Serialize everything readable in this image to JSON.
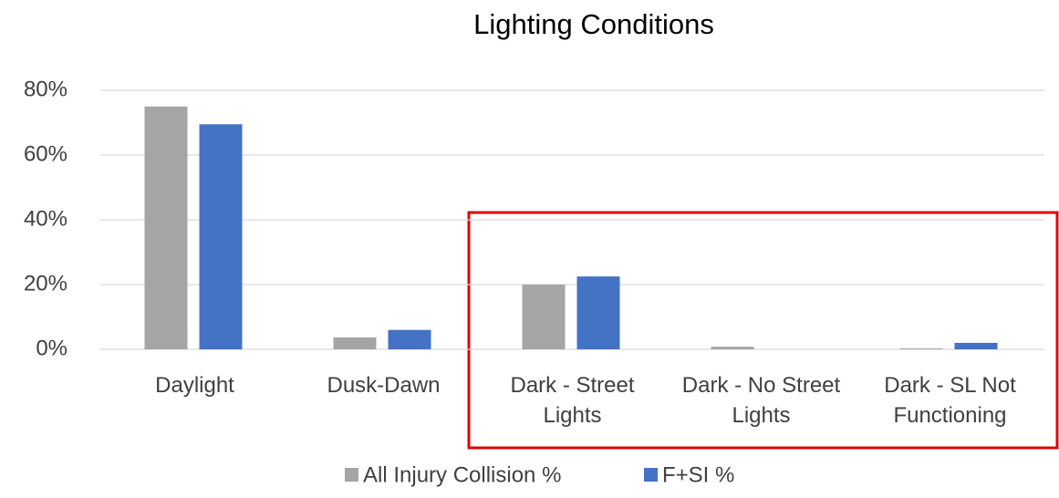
{
  "chart_data": {
    "type": "bar",
    "title": "Lighting Conditions",
    "categories": [
      "Daylight",
      "Dusk-Dawn",
      "Dark - Street Lights",
      "Dark - No Street Lights",
      "Dark - SL Not Functioning"
    ],
    "series": [
      {
        "name": "All Injury Collision %",
        "color": "#a5a5a5",
        "values": [
          75,
          3.7,
          20,
          0.8,
          0.3
        ]
      },
      {
        "name": "F+SI %",
        "color": "#4472c4",
        "values": [
          69.5,
          6,
          22.5,
          0,
          2
        ]
      }
    ],
    "ylim": [
      0,
      80
    ],
    "yticks": [
      {
        "value": 0,
        "label": "0%"
      },
      {
        "value": 20,
        "label": "20%"
      },
      {
        "value": 40,
        "label": "40%"
      },
      {
        "value": 60,
        "label": "60%"
      },
      {
        "value": 80,
        "label": "80%"
      }
    ],
    "grid": true,
    "legend": "bottom"
  }
}
